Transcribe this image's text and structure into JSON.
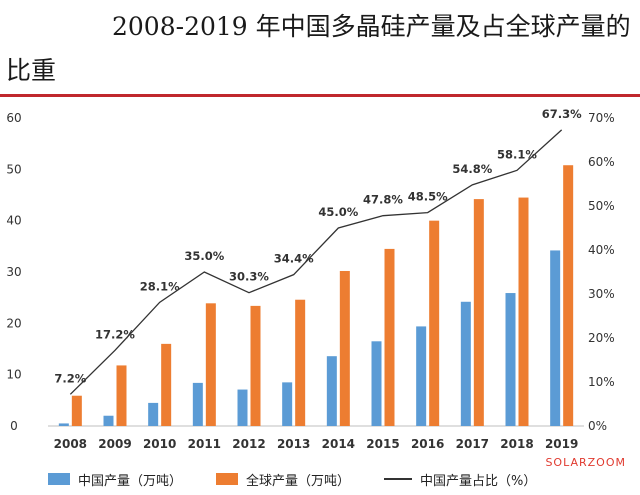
{
  "header": {
    "title_line1": "2008-2019 年中国多晶硅产量及占全球产量的",
    "title_line2": "比重"
  },
  "watermark": "SOLARZOOM",
  "colors": {
    "china": "#5b9bd5",
    "global": "#ed7d31",
    "share_line": "#333333",
    "title_rule": "#c0282d"
  },
  "chart_data": {
    "type": "bar",
    "categories": [
      "2008",
      "2009",
      "2010",
      "2011",
      "2012",
      "2013",
      "2014",
      "2015",
      "2016",
      "2017",
      "2018",
      "2019"
    ],
    "series": [
      {
        "name": "中国产量（万吨）",
        "type": "bar",
        "axis": "left",
        "values": [
          0.5,
          2.0,
          4.5,
          8.4,
          7.1,
          8.5,
          13.6,
          16.5,
          19.4,
          24.2,
          25.9,
          34.2
        ]
      },
      {
        "name": "全球产量（万吨）",
        "type": "bar",
        "axis": "left",
        "values": [
          5.9,
          11.8,
          16.0,
          23.9,
          23.4,
          24.6,
          30.2,
          34.5,
          40.0,
          44.2,
          44.5,
          50.8
        ]
      },
      {
        "name": "中国产量占比（%）",
        "type": "line",
        "axis": "right",
        "values": [
          7.2,
          17.2,
          28.1,
          35.0,
          30.3,
          34.4,
          45.0,
          47.8,
          48.5,
          54.8,
          58.1,
          67.3
        ],
        "labels": [
          "7.2%",
          "17.2%",
          "28.1%",
          "35.0%",
          "30.3%",
          "34.4%",
          "45.0%",
          "47.8%",
          "48.5%",
          "54.8%",
          "58.1%",
          "67.3%"
        ]
      }
    ],
    "y_left": {
      "lim": [
        0,
        60
      ],
      "ticks": [
        "0",
        "10",
        "20",
        "30",
        "40",
        "50",
        "60"
      ]
    },
    "y_right": {
      "lim": [
        0,
        70
      ],
      "ticks": [
        "0%",
        "10%",
        "20%",
        "30%",
        "40%",
        "50%",
        "60%",
        "70%"
      ]
    },
    "grid": false,
    "legend_position": "bottom"
  }
}
